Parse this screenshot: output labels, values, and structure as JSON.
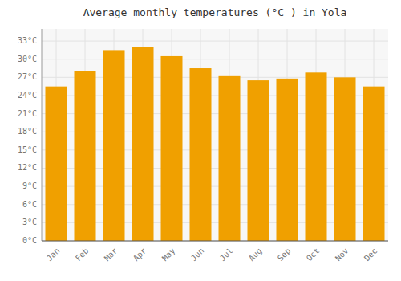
{
  "chart_data": {
    "type": "bar",
    "title": "Average monthly temperatures (°C ) in Yola",
    "categories": [
      "Jan",
      "Feb",
      "Mar",
      "Apr",
      "May",
      "Jun",
      "Jul",
      "Aug",
      "Sep",
      "Oct",
      "Nov",
      "Dec"
    ],
    "values": [
      25.5,
      28.0,
      31.5,
      32.0,
      30.5,
      28.5,
      27.2,
      26.5,
      26.8,
      27.8,
      27.0,
      25.5
    ],
    "color": "#F0A000",
    "ylim": [
      0,
      35
    ],
    "yticks": [
      {
        "value": 0,
        "label": "0°C"
      },
      {
        "value": 3,
        "label": "3°C"
      },
      {
        "value": 6,
        "label": "6°C"
      },
      {
        "value": 9,
        "label": "9°C"
      },
      {
        "value": 12,
        "label": "12°C"
      },
      {
        "value": 15,
        "label": "15°C"
      },
      {
        "value": 18,
        "label": "18°C"
      },
      {
        "value": 21,
        "label": "21°C"
      },
      {
        "value": 24,
        "label": "24°C"
      },
      {
        "value": 27,
        "label": "27°C"
      },
      {
        "value": 30,
        "label": "30°C"
      },
      {
        "value": 33,
        "label": "33°C"
      }
    ],
    "grid": true
  }
}
